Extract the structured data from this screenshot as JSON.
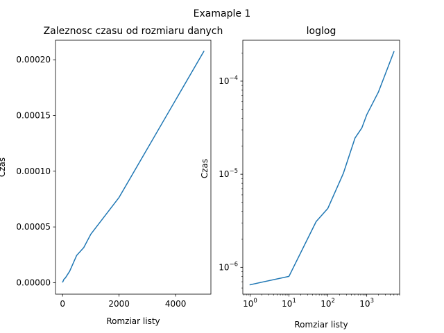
{
  "figure": {
    "suptitle": "Examaple 1"
  },
  "chart_data": [
    {
      "type": "line",
      "title": "Zaleznosc czasu od rozmiaru danych",
      "xlabel": "Romziar listy",
      "ylabel": "Czas",
      "xscale": "linear",
      "yscale": "linear",
      "xlim": [
        -250,
        5250
      ],
      "ylim": [
        -1.03e-05,
        0.0002175
      ],
      "xticks": [
        0,
        2000,
        4000
      ],
      "xtick_labels": [
        "0",
        "2000",
        "4000"
      ],
      "yticks": [
        0,
        5e-05,
        0.0001,
        0.00015,
        0.0002
      ],
      "ytick_labels": [
        "0.00000",
        "0.00005",
        "0.00010",
        "0.00015",
        "0.00020"
      ],
      "grid": false,
      "color": "#1f77b4",
      "series": [
        {
          "x": [
            1,
            10,
            50,
            100,
            250,
            500,
            750,
            1000,
            2000,
            5000
          ],
          "y": [
            6.5e-07,
            8e-07,
            3.1e-06,
            4.3e-06,
            1.02e-05,
            2.45e-05,
            3.15e-05,
            4.35e-05,
            7.65e-05,
            0.0002075
          ]
        }
      ]
    },
    {
      "type": "line",
      "title": "loglog",
      "xlabel": "Romziar listy",
      "ylabel": "Czas",
      "xscale": "log",
      "yscale": "log",
      "xlim": [
        0.65,
        7000
      ],
      "ylim": [
        5.15e-07,
        0.000275
      ],
      "xticks": [
        1,
        10,
        100,
        1000
      ],
      "xtick_labels": [
        [
          "10",
          "0"
        ],
        [
          "10",
          "1"
        ],
        [
          "10",
          "2"
        ],
        [
          "10",
          "3"
        ]
      ],
      "yticks": [
        1e-06,
        1e-05,
        0.0001
      ],
      "ytick_labels": [
        [
          "10",
          "−6"
        ],
        [
          "10",
          "−5"
        ],
        [
          "10",
          "−4"
        ]
      ],
      "grid": false,
      "color": "#1f77b4",
      "series": [
        {
          "x": [
            1,
            10,
            50,
            100,
            250,
            500,
            750,
            1000,
            2000,
            5000
          ],
          "y": [
            6.5e-07,
            8e-07,
            3.1e-06,
            4.3e-06,
            1.02e-05,
            2.45e-05,
            3.15e-05,
            4.35e-05,
            7.65e-05,
            0.0002075
          ]
        }
      ]
    }
  ]
}
